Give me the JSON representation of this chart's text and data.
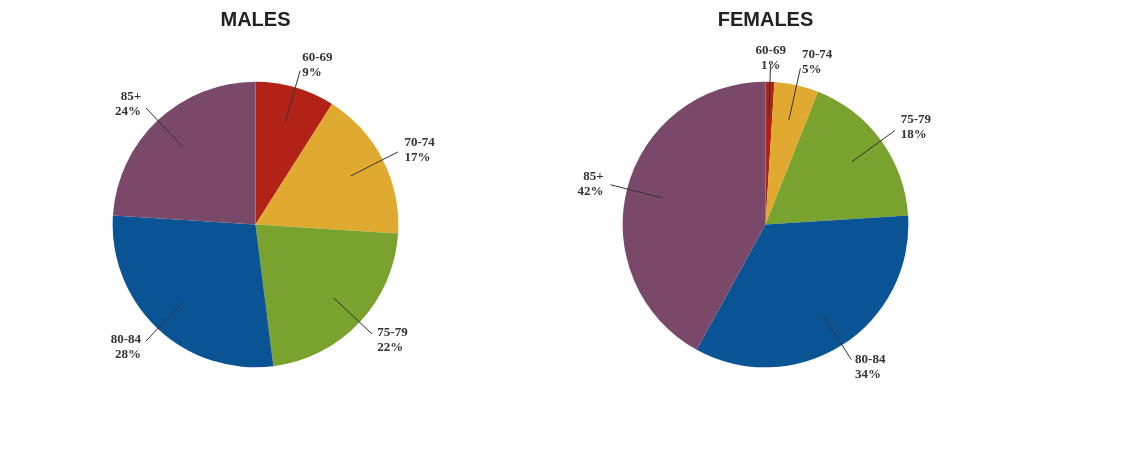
{
  "chart_data": [
    {
      "type": "pie",
      "title": "MALES",
      "categories": [
        "60-69",
        "70-74",
        "75-79",
        "80-84",
        "85+"
      ],
      "values": [
        9,
        17,
        22,
        28,
        24
      ],
      "value_labels": [
        "9%",
        "17%",
        "22%",
        "28%",
        "24%"
      ],
      "colors": [
        "#b22217",
        "#e0a930",
        "#7aa22f",
        "#0a5496",
        "#7a4868"
      ]
    },
    {
      "type": "pie",
      "title": "FEMALES",
      "categories": [
        "60-69",
        "70-74",
        "75-79",
        "80-84",
        "85+"
      ],
      "values": [
        1,
        5,
        18,
        34,
        42
      ],
      "value_labels": [
        "1%",
        "5%",
        "18%",
        "34%",
        "42%"
      ],
      "colors": [
        "#b22217",
        "#e0a930",
        "#7aa22f",
        "#0a5496",
        "#7a4868"
      ]
    }
  ]
}
